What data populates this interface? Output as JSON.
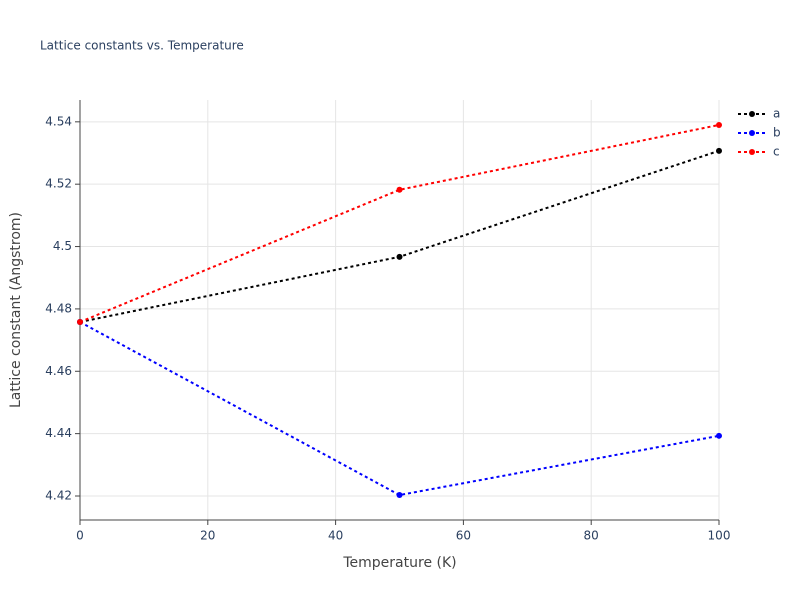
{
  "chart_data": {
    "type": "line",
    "title": "Lattice constants vs. Temperature",
    "x_label": "Temperature (K)",
    "y_label": "Lattice constant (Angstrom)",
    "x": [
      0,
      50,
      100
    ],
    "series": [
      {
        "name": "a",
        "color": "#000000",
        "values": [
          4.4758,
          4.4967,
          4.5307
        ]
      },
      {
        "name": "b",
        "color": "#0000ff",
        "values": [
          4.4758,
          4.4203,
          4.4393
        ]
      },
      {
        "name": "c",
        "color": "#ff0000",
        "values": [
          4.4758,
          4.5182,
          4.539
        ]
      }
    ],
    "xlim": [
      0,
      100
    ],
    "xticks": [
      0,
      20,
      40,
      60,
      80,
      100
    ],
    "ylim": [
      4.4123,
      4.547
    ],
    "yticks": [
      4.42,
      4.44,
      4.46,
      4.48,
      4.5,
      4.52,
      4.54
    ],
    "grid": true,
    "legend": "right"
  }
}
